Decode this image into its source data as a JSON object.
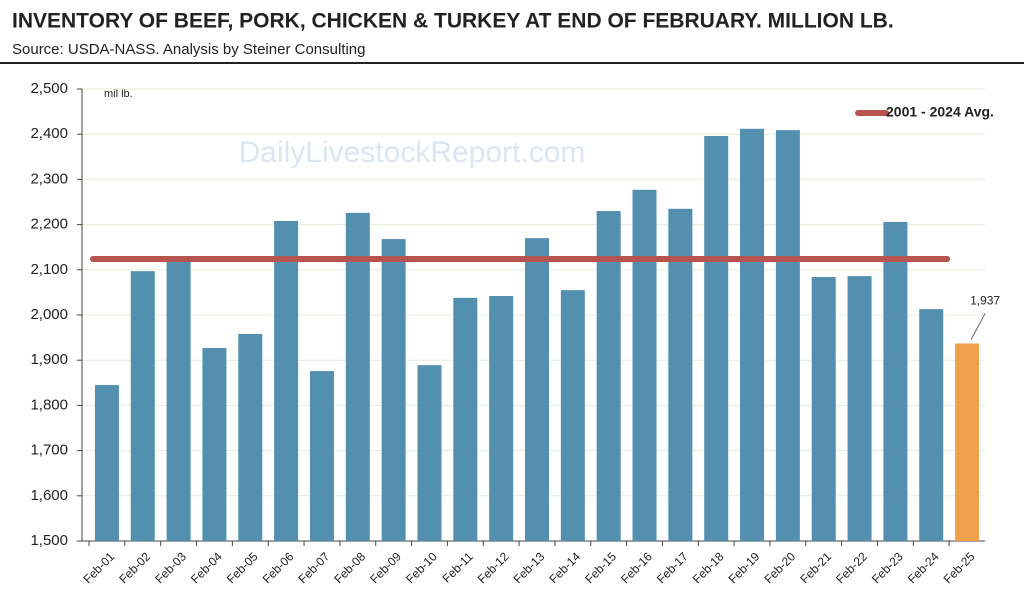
{
  "chart_data": {
    "type": "bar",
    "title": "INVENTORY OF BEEF, PORK, CHICKEN & TURKEY AT END OF FEBRUARY. MILLION LB.",
    "subtitle": "Source:  USDA-NASS.  Analysis by Steiner Consulting",
    "y_unit_label": "mil lb.",
    "watermark": "DailyLivestockReport.com",
    "categories": [
      "Feb-01",
      "Feb-02",
      "Feb-03",
      "Feb-04",
      "Feb-05",
      "Feb-06",
      "Feb-07",
      "Feb-08",
      "Feb-09",
      "Feb-10",
      "Feb-11",
      "Feb-12",
      "Feb-13",
      "Feb-14",
      "Feb-15",
      "Feb-16",
      "Feb-17",
      "Feb-18",
      "Feb-19",
      "Feb-20",
      "Feb-21",
      "Feb-22",
      "Feb-23",
      "Feb-24",
      "Feb-25"
    ],
    "values": [
      1845,
      2097,
      2120,
      1927,
      1958,
      2208,
      1876,
      2226,
      2168,
      1889,
      2038,
      2042,
      2170,
      2055,
      2230,
      2277,
      2235,
      2396,
      2412,
      2409,
      2084,
      2086,
      2206,
      2013,
      1937
    ],
    "value_labels": [
      null,
      null,
      null,
      null,
      null,
      null,
      null,
      null,
      null,
      null,
      null,
      null,
      null,
      null,
      null,
      null,
      null,
      null,
      null,
      null,
      null,
      null,
      null,
      null,
      "1,937"
    ],
    "colors": [
      "#5390b0",
      "#5390b0",
      "#5390b0",
      "#5390b0",
      "#5390b0",
      "#5390b0",
      "#5390b0",
      "#5390b0",
      "#5390b0",
      "#5390b0",
      "#5390b0",
      "#5390b0",
      "#5390b0",
      "#5390b0",
      "#5390b0",
      "#5390b0",
      "#5390b0",
      "#5390b0",
      "#5390b0",
      "#5390b0",
      "#5390b0",
      "#5390b0",
      "#5390b0",
      "#5390b0",
      "#f0a04b"
    ],
    "average": {
      "name": "2001 - 2024 Avg.",
      "value": 2124,
      "color": "#b85450"
    },
    "ylim": [
      1500,
      2500
    ],
    "yticks": [
      {
        "value": 1500,
        "label": "1,500"
      },
      {
        "value": 1600,
        "label": "1,600"
      },
      {
        "value": 1700,
        "label": "1,700"
      },
      {
        "value": 1800,
        "label": "1,800"
      },
      {
        "value": 1900,
        "label": "1,900"
      },
      {
        "value": 2000,
        "label": "2,000"
      },
      {
        "value": 2100,
        "label": "2,100"
      },
      {
        "value": 2200,
        "label": "2,200"
      },
      {
        "value": 2300,
        "label": "2,300"
      },
      {
        "value": 2400,
        "label": "2,400"
      },
      {
        "value": 2500,
        "label": "2,500"
      }
    ],
    "grid": true,
    "legend": "top-right"
  }
}
